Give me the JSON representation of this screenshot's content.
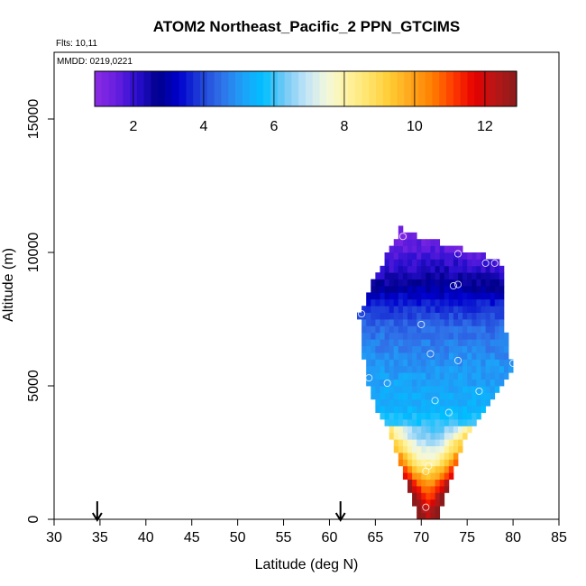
{
  "chart_data": {
    "type": "heatmap",
    "title": "ATOM2 Northeast_Pacific_2 PPN_GTCIMS",
    "flights_label": "Flts: 10,11",
    "dates_label": "MMDD: 0219,0221",
    "xlabel": "Latitude (deg N)",
    "ylabel": "Altitude (m)",
    "xlim": [
      30,
      85
    ],
    "ylim": [
      0,
      17500
    ],
    "xticks": [
      30,
      35,
      40,
      45,
      50,
      55,
      60,
      65,
      70,
      75,
      80,
      85
    ],
    "xtick_labels": [
      "30",
      "35",
      "40",
      "45",
      "50",
      "55",
      "60",
      "65",
      "70",
      "75",
      "80",
      "85"
    ],
    "yticks": [
      0,
      5000,
      10000,
      15000
    ],
    "ytick_labels": [
      "0",
      "5000",
      "10000",
      "15000"
    ],
    "colorbar": {
      "range": [
        0.9,
        12.9
      ],
      "ticks": [
        2,
        4,
        6,
        8,
        10,
        12
      ],
      "tick_labels": [
        "2",
        "4",
        "6",
        "8",
        "10",
        "12"
      ],
      "colors": [
        "#8a2be2",
        "#6a1fe0",
        "#2a0fd0",
        "#00008b",
        "#0000cd",
        "#1f3fd8",
        "#3070e8",
        "#1ea0f8",
        "#00bfff",
        "#74c8f4",
        "#bfe4f8",
        "#f3f8dc",
        "#fff3a0",
        "#ffe36a",
        "#ffcc33",
        "#ffa51c",
        "#ff7f00",
        "#ff3a00",
        "#e60000",
        "#b81818",
        "#8b1a1a"
      ]
    },
    "arrows_latitude": [
      34.7,
      61.2
    ],
    "grid_lat_step": 0.5,
    "grid_alt_step": 250,
    "profile_rows": [
      {
        "alt": 250,
        "lat_min": 69.5,
        "lat_max": 72.0
      },
      {
        "alt": 750,
        "lat_min": 69.0,
        "lat_max": 72.5
      },
      {
        "alt": 1250,
        "lat_min": 68.5,
        "lat_max": 73.0
      },
      {
        "alt": 1750,
        "lat_min": 68.0,
        "lat_max": 73.5
      },
      {
        "alt": 2250,
        "lat_min": 67.5,
        "lat_max": 74.0
      },
      {
        "alt": 2750,
        "lat_min": 67.0,
        "lat_max": 74.5
      },
      {
        "alt": 3250,
        "lat_min": 66.5,
        "lat_max": 75.0
      },
      {
        "alt": 3750,
        "lat_min": 65.5,
        "lat_max": 76.0
      },
      {
        "alt": 4250,
        "lat_min": 65.0,
        "lat_max": 77.0
      },
      {
        "alt": 4750,
        "lat_min": 64.5,
        "lat_max": 78.0
      },
      {
        "alt": 5250,
        "lat_min": 64.0,
        "lat_max": 79.0
      },
      {
        "alt": 5750,
        "lat_min": 64.0,
        "lat_max": 80.0
      },
      {
        "alt": 6250,
        "lat_min": 63.5,
        "lat_max": 79.5
      },
      {
        "alt": 6750,
        "lat_min": 63.5,
        "lat_max": 79.5
      },
      {
        "alt": 7250,
        "lat_min": 63.5,
        "lat_max": 79.0
      },
      {
        "alt": 7750,
        "lat_min": 63.0,
        "lat_max": 79.0
      },
      {
        "alt": 8250,
        "lat_min": 64.0,
        "lat_max": 79.0
      },
      {
        "alt": 8750,
        "lat_min": 64.5,
        "lat_max": 79.0
      },
      {
        "alt": 9250,
        "lat_min": 65.0,
        "lat_max": 79.0
      },
      {
        "alt": 9750,
        "lat_min": 66.0,
        "lat_max": 78.5
      },
      {
        "alt": 10250,
        "lat_min": 66.5,
        "lat_max": 73.0
      },
      {
        "alt": 10750,
        "lat_min": 67.5,
        "lat_max": 68.0
      }
    ],
    "value_by_altitude": [
      {
        "alt": 250,
        "value": 12.3
      },
      {
        "alt": 1250,
        "value": 10.5
      },
      {
        "alt": 2250,
        "value": 7.8
      },
      {
        "alt": 3250,
        "value": 6.2
      },
      {
        "alt": 4250,
        "value": 5.4
      },
      {
        "alt": 5750,
        "value": 5.0
      },
      {
        "alt": 7250,
        "value": 4.4
      },
      {
        "alt": 8250,
        "value": 3.4
      },
      {
        "alt": 9250,
        "value": 2.4
      },
      {
        "alt": 10250,
        "value": 1.7
      },
      {
        "alt": 10750,
        "value": 1.3
      }
    ],
    "sample_points": [
      {
        "lat": 68.0,
        "alt": 10600
      },
      {
        "lat": 74.0,
        "alt": 9950
      },
      {
        "lat": 77.0,
        "alt": 9600
      },
      {
        "lat": 78.0,
        "alt": 9600
      },
      {
        "lat": 73.5,
        "alt": 8750
      },
      {
        "lat": 74.0,
        "alt": 8800
      },
      {
        "lat": 63.5,
        "alt": 7700
      },
      {
        "lat": 70.0,
        "alt": 7300
      },
      {
        "lat": 71.0,
        "alt": 6200
      },
      {
        "lat": 74.0,
        "alt": 5950
      },
      {
        "lat": 80.0,
        "alt": 5850
      },
      {
        "lat": 64.3,
        "alt": 5300
      },
      {
        "lat": 66.3,
        "alt": 5100
      },
      {
        "lat": 76.3,
        "alt": 4800
      },
      {
        "lat": 71.5,
        "alt": 4450
      },
      {
        "lat": 73.0,
        "alt": 4000
      },
      {
        "lat": 70.8,
        "alt": 2000
      },
      {
        "lat": 70.5,
        "alt": 1800
      },
      {
        "lat": 70.5,
        "alt": 450
      }
    ]
  }
}
